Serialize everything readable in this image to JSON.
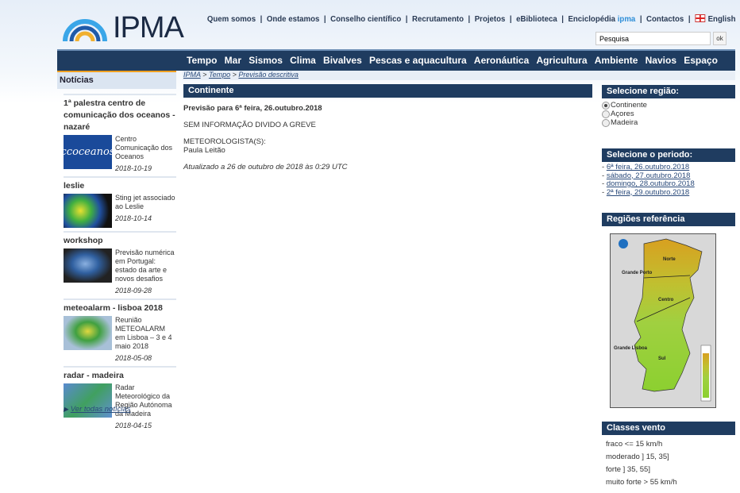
{
  "header": {
    "logo_text": "IPMA",
    "links": [
      "Quem somos",
      "Onde estamos",
      "Conselho científico",
      "Recrutamento",
      "Projetos",
      "eBiblioteca",
      "Enciclopédia",
      "Contactos",
      "English"
    ],
    "encyclopedia_suffix": "ipma",
    "search_placeholder": "Pesquisa",
    "search_button": "ok"
  },
  "nav": [
    "Tempo",
    "Mar",
    "Sismos",
    "Clima",
    "Bivalves",
    "Pescas e aquacultura",
    "Aeronáutica",
    "Agricultura",
    "Ambiente",
    "Navios",
    "Espaço"
  ],
  "breadcrumb": [
    "IPMA",
    "Tempo",
    "Previsão descritiva"
  ],
  "news": {
    "title": "Notícias",
    "items": [
      {
        "title": "1ª palestra centro de comunicação dos oceanos - nazaré",
        "text": "Centro Comunicação dos Oceanos",
        "date": "2018-10-19",
        "thumb_text": "ccoceanos"
      },
      {
        "title": "leslie",
        "text": "Sting jet associado ao Leslie",
        "date": "2018-10-14"
      },
      {
        "title": "workshop",
        "text": "Previsão numérica em Portugal: estado da arte e novos desafios",
        "date": "2018-09-28"
      },
      {
        "title": "meteoalarm - lisboa 2018",
        "text": "Reunião METEOALARM em Lisboa – 3 e 4 maio 2018",
        "date": "2018-05-08"
      },
      {
        "title": "radar - madeira",
        "text": "Radar Meteorológico da Região Autónoma da Madeira",
        "date": "2018-04-15"
      }
    ],
    "more": "Ver todas notícias"
  },
  "forecast": {
    "region": "Continente",
    "heading": "Previsão para 6ª feira, 26.outubro.2018",
    "body": "SEM INFORMAÇÃO DIVIDO A GREVE",
    "meteorologist_label": "METEOROLOGISTA(S):",
    "meteorologist": "Paula Leitão",
    "updated": "Atualizado a 26 de outubro de 2018 às 0:29 UTC"
  },
  "sidebar": {
    "region_title": "Selecione região:",
    "regions": [
      {
        "label": "Continente",
        "selected": true
      },
      {
        "label": "Açores",
        "selected": false
      },
      {
        "label": "Madeira",
        "selected": false
      }
    ],
    "period_title": "Selecione o periodo:",
    "periods": [
      "6ª feira, 26.outubro.2018",
      "sábado, 27.outubro.2018",
      "domingo, 28.outubro.2018",
      "2ª feira, 29.outubro.2018"
    ],
    "ref_title": "Regiões referência",
    "map_labels": [
      "Grande Porto",
      "Norte",
      "Centro",
      "Grande Lisboa",
      "Sul"
    ],
    "wind_title": "Classes vento",
    "wind": [
      "fraco <= 15 km/h",
      "moderado ] 15, 35]",
      "forte ] 35, 55]",
      "muito forte > 55 km/h"
    ]
  },
  "colors": {
    "nav": "#1f3c60",
    "accent": "#f0a020",
    "link": "#2a4a7a"
  }
}
